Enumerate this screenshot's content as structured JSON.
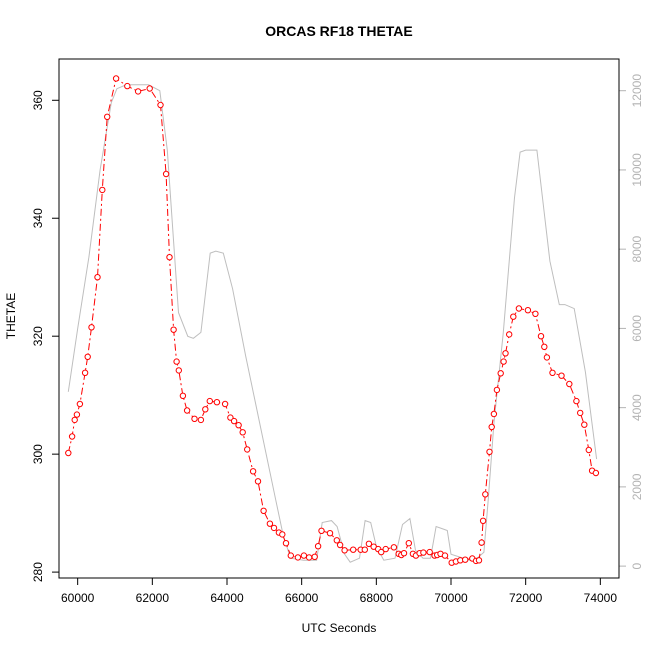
{
  "chart_data": {
    "type": "line",
    "title": "ORCAS RF18 THETAE",
    "xlabel": "UTC Seconds",
    "ylabel": "THETAE",
    "y2label": "",
    "xlim": [
      59500,
      74500
    ],
    "ylim": [
      279,
      367
    ],
    "y2lim": [
      -300,
      12800
    ],
    "x_ticks": [
      60000,
      62000,
      64000,
      66000,
      68000,
      70000,
      72000,
      74000
    ],
    "y_ticks": [
      280,
      300,
      320,
      340,
      360
    ],
    "y2_ticks": [
      0,
      2000,
      4000,
      6000,
      8000,
      10000,
      12000
    ],
    "colors": {
      "thetae": "#ff0000",
      "altitude": "#bebebe",
      "frame": "#000000"
    },
    "series": [
      {
        "axis": "left",
        "style": "points-and-dashed-line",
        "points": [
          [
            59750,
            300.2
          ],
          [
            59850,
            303.0
          ],
          [
            59920,
            305.8
          ],
          [
            59980,
            306.7
          ],
          [
            60060,
            308.5
          ],
          [
            60200,
            313.8
          ],
          [
            60270,
            316.5
          ],
          [
            60370,
            321.5
          ],
          [
            60530,
            330.0
          ],
          [
            60660,
            344.8
          ],
          [
            60790,
            357.2
          ],
          [
            61030,
            363.7
          ],
          [
            61330,
            362.4
          ],
          [
            61620,
            361.5
          ],
          [
            61930,
            362.0
          ],
          [
            62220,
            359.2
          ],
          [
            62370,
            347.5
          ],
          [
            62460,
            333.4
          ],
          [
            62570,
            321.1
          ],
          [
            62650,
            315.7
          ],
          [
            62710,
            314.2
          ],
          [
            62820,
            309.9
          ],
          [
            62930,
            307.4
          ],
          [
            63130,
            306.0
          ],
          [
            63300,
            305.8
          ],
          [
            63420,
            307.6
          ],
          [
            63540,
            309.0
          ],
          [
            63730,
            308.8
          ],
          [
            63950,
            308.5
          ],
          [
            64090,
            306.2
          ],
          [
            64190,
            305.6
          ],
          [
            64310,
            304.9
          ],
          [
            64420,
            303.7
          ],
          [
            64540,
            300.8
          ],
          [
            64700,
            297.1
          ],
          [
            64830,
            295.4
          ],
          [
            64980,
            290.4
          ],
          [
            65150,
            288.2
          ],
          [
            65260,
            287.5
          ],
          [
            65390,
            286.7
          ],
          [
            65480,
            286.4
          ],
          [
            65580,
            284.9
          ],
          [
            65710,
            282.8
          ],
          [
            65900,
            282.5
          ],
          [
            66060,
            282.8
          ],
          [
            66200,
            282.5
          ],
          [
            66350,
            282.6
          ],
          [
            66440,
            284.4
          ],
          [
            66530,
            287.0
          ],
          [
            66760,
            286.6
          ],
          [
            66940,
            285.4
          ],
          [
            67030,
            284.6
          ],
          [
            67150,
            283.7
          ],
          [
            67380,
            283.8
          ],
          [
            67580,
            283.8
          ],
          [
            67690,
            283.8
          ],
          [
            67800,
            284.8
          ],
          [
            67930,
            284.3
          ],
          [
            68050,
            283.9
          ],
          [
            68130,
            283.4
          ],
          [
            68250,
            283.9
          ],
          [
            68470,
            284.2
          ],
          [
            68600,
            283.1
          ],
          [
            68670,
            282.9
          ],
          [
            68740,
            283.2
          ],
          [
            68870,
            284.9
          ],
          [
            68980,
            283.1
          ],
          [
            69060,
            282.8
          ],
          [
            69160,
            283.2
          ],
          [
            69260,
            283.3
          ],
          [
            69430,
            283.4
          ],
          [
            69560,
            282.8
          ],
          [
            69630,
            282.9
          ],
          [
            69720,
            283.1
          ],
          [
            69840,
            282.8
          ],
          [
            70020,
            281.6
          ],
          [
            70130,
            281.8
          ],
          [
            70250,
            282.0
          ],
          [
            70380,
            282.1
          ],
          [
            70570,
            282.3
          ],
          [
            70670,
            281.9
          ],
          [
            70750,
            282.0
          ],
          [
            70820,
            285.0
          ],
          [
            70860,
            288.7
          ],
          [
            70920,
            293.2
          ],
          [
            71030,
            300.4
          ],
          [
            71090,
            304.6
          ],
          [
            71150,
            306.8
          ],
          [
            71230,
            310.9
          ],
          [
            71330,
            313.7
          ],
          [
            71410,
            315.7
          ],
          [
            71460,
            317.1
          ],
          [
            71560,
            320.3
          ],
          [
            71670,
            323.3
          ],
          [
            71820,
            324.7
          ],
          [
            72060,
            324.4
          ],
          [
            72260,
            323.8
          ],
          [
            72410,
            320.0
          ],
          [
            72500,
            318.2
          ],
          [
            72570,
            316.4
          ],
          [
            72720,
            313.8
          ],
          [
            72960,
            313.3
          ],
          [
            73170,
            311.9
          ],
          [
            73360,
            309.0
          ],
          [
            73460,
            307.0
          ],
          [
            73570,
            305.0
          ],
          [
            73690,
            300.7
          ],
          [
            73780,
            297.2
          ],
          [
            73880,
            296.8
          ]
        ]
      },
      {
        "axis": "right",
        "style": "line",
        "points": [
          [
            59750,
            4400
          ],
          [
            60000,
            6000
          ],
          [
            60300,
            7800
          ],
          [
            60600,
            10000
          ],
          [
            60900,
            11700
          ],
          [
            61050,
            12050
          ],
          [
            61300,
            12150
          ],
          [
            61900,
            12150
          ],
          [
            62200,
            12000
          ],
          [
            62400,
            10500
          ],
          [
            62700,
            6400
          ],
          [
            62950,
            5800
          ],
          [
            63100,
            5750
          ],
          [
            63300,
            5900
          ],
          [
            63550,
            7900
          ],
          [
            63700,
            7950
          ],
          [
            63900,
            7900
          ],
          [
            64150,
            7000
          ],
          [
            64500,
            5300
          ],
          [
            64900,
            3500
          ],
          [
            65300,
            1700
          ],
          [
            65500,
            800
          ],
          [
            65700,
            200
          ],
          [
            66050,
            150
          ],
          [
            66400,
            150
          ],
          [
            66550,
            1100
          ],
          [
            66800,
            1150
          ],
          [
            66950,
            1000
          ],
          [
            67150,
            300
          ],
          [
            67300,
            100
          ],
          [
            67550,
            200
          ],
          [
            67700,
            1150
          ],
          [
            67850,
            1100
          ],
          [
            68000,
            500
          ],
          [
            68200,
            150
          ],
          [
            68500,
            200
          ],
          [
            68700,
            1050
          ],
          [
            68900,
            1200
          ],
          [
            69050,
            400
          ],
          [
            69250,
            200
          ],
          [
            69450,
            200
          ],
          [
            69600,
            1000
          ],
          [
            69750,
            950
          ],
          [
            69900,
            900
          ],
          [
            70000,
            300
          ],
          [
            70500,
            150
          ],
          [
            70700,
            200
          ],
          [
            70880,
            350
          ],
          [
            71000,
            1700
          ],
          [
            71150,
            3600
          ],
          [
            71400,
            5900
          ],
          [
            71700,
            9300
          ],
          [
            71850,
            10450
          ],
          [
            72000,
            10500
          ],
          [
            72300,
            10500
          ],
          [
            72650,
            7700
          ],
          [
            72900,
            6600
          ],
          [
            73050,
            6600
          ],
          [
            73300,
            6500
          ],
          [
            73600,
            4900
          ],
          [
            73900,
            2700
          ]
        ]
      }
    ]
  }
}
